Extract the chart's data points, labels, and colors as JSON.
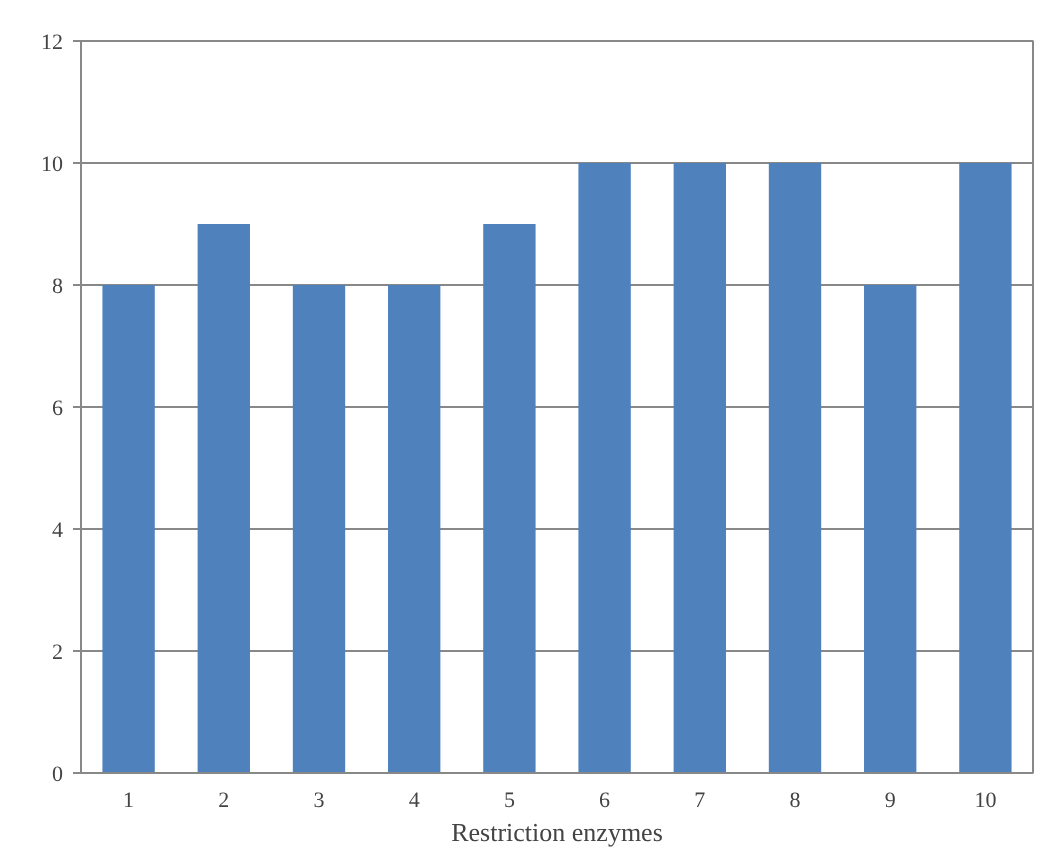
{
  "chart_data": {
    "type": "bar",
    "xlabel": "Restriction enzymes",
    "categories": [
      "1",
      "2",
      "3",
      "4",
      "5",
      "6",
      "7",
      "8",
      "9",
      "10"
    ],
    "values": [
      8,
      9,
      8,
      8,
      9,
      10,
      10,
      10,
      8,
      10
    ],
    "color": "#4f81bd",
    "ylim": [
      0,
      12
    ],
    "yticks": [
      0,
      2,
      4,
      6,
      8,
      10,
      12
    ],
    "grid": "y"
  }
}
